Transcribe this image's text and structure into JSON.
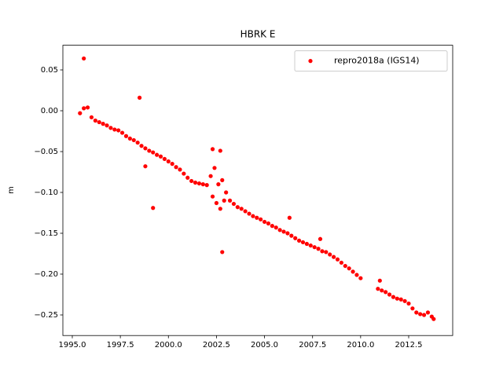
{
  "chart_data": {
    "type": "scatter",
    "title": "HBRK E",
    "y_label": "m",
    "x": [
      1995.4,
      1995.6,
      1995.8,
      1996.0,
      1996.2,
      1996.4,
      1996.6,
      1996.8,
      1997.0,
      1997.2,
      1997.4,
      1997.6,
      1997.8,
      1998.0,
      1998.2,
      1998.4,
      1998.6,
      1998.8,
      1999.0,
      1999.2,
      1999.4,
      1999.6,
      1999.8,
      2000.0,
      2000.2,
      2000.4,
      2000.6,
      2000.8,
      2001.0,
      2001.2,
      2001.4,
      2001.6,
      2001.8,
      2002.0,
      2002.2,
      2002.3,
      2002.4,
      2002.5,
      2002.6,
      2002.7,
      2002.8,
      2002.9,
      2003.0,
      2003.2,
      2003.4,
      2003.6,
      2003.8,
      2004.0,
      2004.2,
      2004.4,
      2004.6,
      2004.8,
      2005.0,
      2005.2,
      2005.4,
      2005.6,
      2005.8,
      2006.0,
      2006.2,
      2006.4,
      2006.6,
      2006.8,
      2007.0,
      2007.2,
      2007.4,
      2007.6,
      2007.8,
      2008.0,
      2008.2,
      2008.4,
      2008.6,
      2008.8,
      2009.0,
      2009.2,
      2009.4,
      2009.6,
      2009.8,
      2010.0,
      2010.9,
      2011.1,
      2011.3,
      2011.5,
      2011.7,
      2011.9,
      2012.1,
      2012.3,
      2012.5,
      2012.7,
      2012.9,
      2013.1,
      2013.3,
      2013.5,
      2013.7,
      2013.8,
      1995.6,
      1998.5,
      1998.8,
      1999.2,
      2002.3,
      2002.7,
      2002.8,
      2006.3,
      2007.9,
      2011.0
    ],
    "series": [
      {
        "name": "repro2018a (IGS14)",
        "color": "#ff0000",
        "values": [
          -0.003,
          0.003,
          0.004,
          -0.008,
          -0.012,
          -0.014,
          -0.016,
          -0.018,
          -0.021,
          -0.023,
          -0.024,
          -0.027,
          -0.031,
          -0.034,
          -0.036,
          -0.039,
          -0.043,
          -0.046,
          -0.049,
          -0.051,
          -0.054,
          -0.056,
          -0.059,
          -0.062,
          -0.065,
          -0.069,
          -0.072,
          -0.077,
          -0.082,
          -0.086,
          -0.088,
          -0.089,
          -0.09,
          -0.091,
          -0.08,
          -0.105,
          -0.07,
          -0.113,
          -0.09,
          -0.12,
          -0.085,
          -0.11,
          -0.1,
          -0.11,
          -0.114,
          -0.118,
          -0.12,
          -0.123,
          -0.126,
          -0.129,
          -0.131,
          -0.133,
          -0.136,
          -0.138,
          -0.141,
          -0.143,
          -0.146,
          -0.148,
          -0.15,
          -0.153,
          -0.156,
          -0.159,
          -0.161,
          -0.163,
          -0.165,
          -0.167,
          -0.169,
          -0.172,
          -0.173,
          -0.176,
          -0.179,
          -0.182,
          -0.186,
          -0.19,
          -0.193,
          -0.197,
          -0.201,
          -0.205,
          -0.218,
          -0.22,
          -0.222,
          -0.225,
          -0.228,
          -0.23,
          -0.231,
          -0.233,
          -0.236,
          -0.242,
          -0.247,
          -0.249,
          -0.25,
          -0.247,
          -0.252,
          -0.255,
          0.064,
          0.016,
          -0.068,
          -0.119,
          -0.047,
          -0.049,
          -0.173,
          -0.131,
          -0.157,
          -0.208
        ]
      }
    ],
    "xlim": [
      1994.51,
      2014.79
    ],
    "xticks": [
      {
        "value": 1995,
        "label": "1995.0"
      },
      {
        "value": 1997.5,
        "label": "1997.5"
      },
      {
        "value": 2000,
        "label": "2000.0"
      },
      {
        "value": 2002.5,
        "label": "2002.5"
      },
      {
        "value": 2005,
        "label": "2005.0"
      },
      {
        "value": 2007.5,
        "label": "2007.5"
      },
      {
        "value": 2010,
        "label": "2010.0"
      },
      {
        "value": 2012.5,
        "label": "2012.5"
      }
    ],
    "ylim": [
      -0.2752,
      0.0802
    ],
    "yticks": [
      {
        "value": -0.25,
        "label": "−0.25"
      },
      {
        "value": -0.2,
        "label": "−0.20"
      },
      {
        "value": -0.15,
        "label": "−0.15"
      },
      {
        "value": -0.1,
        "label": "−0.10"
      },
      {
        "value": -0.05,
        "label": "−0.05"
      },
      {
        "value": 0,
        "label": "0.00"
      },
      {
        "value": 0.05,
        "label": "0.05"
      }
    ],
    "grid": false,
    "legend": "upper right"
  }
}
